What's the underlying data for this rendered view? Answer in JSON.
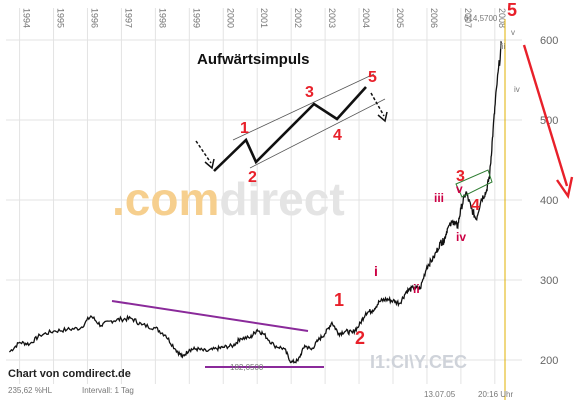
{
  "chart_data": {
    "type": "line",
    "title": "",
    "xlabel": "",
    "ylabel": "",
    "x_ticks": [
      "1994",
      "1995",
      "1996",
      "1997",
      "1998",
      "1999",
      "2000",
      "2001",
      "2002",
      "2003",
      "2004",
      "2005",
      "2006",
      "2007",
      "2008"
    ],
    "y_ticks": [
      200,
      300,
      400,
      500,
      600
    ],
    "xlim": [
      1993.6,
      2008.8
    ],
    "ylim": [
      170,
      640
    ],
    "grid": true,
    "price_series": {
      "name": "",
      "x": [
        1993.7,
        1994.0,
        1994.3,
        1994.6,
        1995.0,
        1995.4,
        1995.8,
        1996.1,
        1996.4,
        1996.7,
        1997.0,
        1997.3,
        1997.6,
        1998.0,
        1998.3,
        1998.6,
        1998.8,
        1999.0,
        1999.2,
        1999.5,
        1999.8,
        2000.0,
        2000.3,
        2000.5,
        2000.8,
        2001.0,
        2001.2,
        2001.5,
        2001.8,
        2002.0,
        2002.2,
        2002.4,
        2002.6,
        2002.8,
        2003.0,
        2003.2,
        2003.4,
        2003.6,
        2003.8,
        2004.0,
        2004.2,
        2004.4,
        2004.6,
        2004.8,
        2005.0,
        2005.2,
        2005.4,
        2005.6,
        2005.8,
        2006.0,
        2006.2,
        2006.4,
        2006.5,
        2006.6,
        2006.8,
        2006.9,
        2007.0,
        2007.15,
        2007.3,
        2007.45,
        2007.6,
        2007.75,
        2007.85,
        2007.95,
        2008.05,
        2008.2
      ],
      "y": [
        210,
        222,
        220,
        231,
        236,
        238,
        240,
        255,
        243,
        249,
        251,
        252,
        244,
        240,
        231,
        213,
        204,
        213,
        214,
        211,
        214,
        216,
        218,
        227,
        228,
        238,
        232,
        218,
        214,
        197,
        199,
        218,
        213,
        225,
        233,
        247,
        233,
        236,
        234,
        243,
        259,
        262,
        273,
        276,
        274,
        271,
        286,
        290,
        289,
        317,
        328,
        347,
        349,
        364,
        374,
        366,
        389,
        410,
        390,
        376,
        401,
        411,
        432,
        488,
        540,
        597
      ]
    },
    "current_value_label": "614,5700",
    "low_label": "182,0500",
    "stats_label": "235,62 %HL",
    "interval_label": "Intervall: 1 Tag",
    "date_label": "13.07.05",
    "time_label": "20:16 Uhr",
    "watermark": ".comdirect",
    "ticker": "I1:CI\\Y.CEC",
    "source": "Chart von comdirect.de",
    "inset": {
      "title": "Aufwärtsimpuls",
      "wave_labels": [
        "1",
        "2",
        "3",
        "4",
        "5"
      ]
    },
    "main_waves": [
      "1",
      "2"
    ],
    "sub_waves": [
      "i",
      "ii",
      "iii",
      "iv",
      "v"
    ],
    "wave_labels_large": [
      "3",
      "4",
      "5"
    ],
    "sub_waves_top": [
      "iii",
      "iv",
      "v"
    ],
    "colors": {
      "price": "#111111",
      "wave_label": "#e8202a",
      "trendline": "#8a2a9a",
      "channel": "#2e7d32",
      "forecast_arrow": "#e8202a",
      "grid": "#e3e3e3"
    }
  }
}
